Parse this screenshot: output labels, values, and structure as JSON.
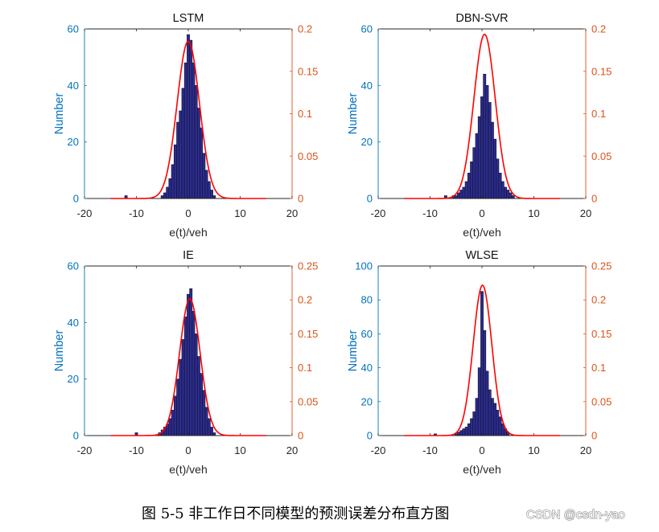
{
  "figure": {
    "caption": "图 5-5 非工作日不同模型的预测误差分布直方图",
    "watermark": "CSDN @csdn-yao"
  },
  "colors": {
    "left_axis": "#0072BD",
    "right_axis": "#D95319",
    "x_axis": "#262626",
    "bars": "#2C2C8A",
    "bar_edge": "#10103A",
    "fit_curve": "#FF0000"
  },
  "chart_data": [
    {
      "type": "bar",
      "title": "LSTM",
      "xlabel": "e(t)/veh",
      "ylabel": "Number",
      "xlim": [
        -20,
        20
      ],
      "xticks": [
        -20,
        -10,
        0,
        10,
        20
      ],
      "ylim": [
        0,
        60
      ],
      "yticks": [
        0,
        20,
        40,
        60
      ],
      "y2lim": [
        0,
        0.2
      ],
      "y2ticks": [
        0,
        0.05,
        0.1,
        0.15,
        0.2
      ],
      "grid": false,
      "bin_width": 0.5,
      "x": [
        -12,
        -5,
        -4.5,
        -4,
        -3.5,
        -3,
        -2.5,
        -2,
        -1.5,
        -1,
        -0.5,
        0,
        0.5,
        1,
        1.5,
        2,
        2.5,
        3,
        3.5,
        4,
        4.5,
        5
      ],
      "values": [
        1,
        1,
        2,
        4,
        7,
        12,
        19,
        27,
        31,
        39,
        48,
        58,
        56,
        48,
        40,
        32,
        25,
        16,
        10,
        6,
        3,
        1
      ],
      "density_curve": {
        "mean": 0,
        "std": 2.15
      }
    },
    {
      "type": "bar",
      "title": "DBN-SVR",
      "xlabel": "e(t)/veh",
      "ylabel": "Number",
      "xlim": [
        -20,
        20
      ],
      "xticks": [
        -20,
        -10,
        0,
        10,
        20
      ],
      "ylim": [
        0,
        60
      ],
      "yticks": [
        0,
        20,
        40,
        60
      ],
      "y2lim": [
        0,
        0.2
      ],
      "y2ticks": [
        0,
        0.05,
        0.1,
        0.15,
        0.2
      ],
      "grid": false,
      "bin_width": 0.5,
      "x": [
        -7,
        -5.5,
        -5,
        -4.5,
        -4,
        -3.5,
        -3,
        -2.5,
        -2,
        -1.5,
        -1,
        -0.5,
        0,
        0.5,
        1,
        1.5,
        2,
        2.5,
        3,
        3.5,
        4,
        4.5,
        5,
        5.5,
        6
      ],
      "values": [
        1,
        1,
        1,
        2,
        3,
        4,
        6,
        9,
        13,
        18,
        23,
        29,
        36,
        44,
        40,
        34,
        27,
        21,
        14,
        9,
        6,
        4,
        3,
        2,
        1
      ],
      "density_curve": {
        "mean": 0.5,
        "std": 2.06
      }
    },
    {
      "type": "bar",
      "title": "IE",
      "xlabel": "e(t)/veh",
      "ylabel": "Number",
      "xlim": [
        -20,
        20
      ],
      "xticks": [
        -20,
        -10,
        0,
        10,
        20
      ],
      "ylim": [
        0,
        60
      ],
      "yticks": [
        0,
        20,
        40,
        60
      ],
      "y2lim": [
        0,
        0.25
      ],
      "y2ticks": [
        0,
        0.05,
        0.1,
        0.15,
        0.2,
        0.25
      ],
      "grid": false,
      "bin_width": 0.5,
      "x": [
        -10,
        -5.5,
        -5,
        -4.5,
        -4,
        -3.5,
        -3,
        -2.5,
        -2,
        -1.5,
        -1,
        -0.5,
        0,
        0.5,
        1,
        1.5,
        2,
        2.5,
        3,
        3.5,
        4,
        4.5,
        5
      ],
      "values": [
        1,
        1,
        2,
        3,
        4,
        6,
        9,
        14,
        20,
        27,
        34,
        42,
        50,
        52,
        44,
        36,
        28,
        22,
        16,
        10,
        6,
        3,
        1
      ],
      "density_curve": {
        "mean": 0.3,
        "std": 1.98
      }
    },
    {
      "type": "bar",
      "title": "WLSE",
      "xlabel": "e(t)/veh",
      "ylabel": "Number",
      "xlim": [
        -20,
        20
      ],
      "xticks": [
        -20,
        -10,
        0,
        10,
        20
      ],
      "ylim": [
        0,
        100
      ],
      "yticks": [
        0,
        20,
        40,
        60,
        80,
        100
      ],
      "y2lim": [
        0,
        0.25
      ],
      "y2ticks": [
        0,
        0.05,
        0.1,
        0.15,
        0.2,
        0.25
      ],
      "grid": false,
      "bin_width": 0.5,
      "x": [
        -9,
        -5,
        -4.5,
        -4,
        -3.5,
        -3,
        -2.5,
        -2,
        -1.5,
        -1,
        -0.5,
        0,
        0.5,
        1,
        1.5,
        2,
        2.5,
        3,
        3.5,
        4,
        4.5,
        5
      ],
      "values": [
        1,
        1,
        2,
        3,
        4,
        5,
        7,
        10,
        14,
        22,
        40,
        85,
        62,
        38,
        27,
        22,
        19,
        15,
        11,
        7,
        4,
        2
      ],
      "density_curve": {
        "mean": 0.1,
        "std": 1.8
      }
    }
  ]
}
